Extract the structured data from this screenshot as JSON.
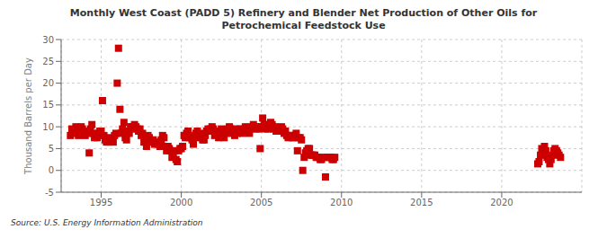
{
  "chart_data": {
    "type": "scatter",
    "title": "Monthly West Coast (PADD 5) Refinery and Blender Net Production of Other Oils for\nPetrochemical Feedstock Use",
    "ylabel": "Thousand Barrels per Day",
    "annotation": "Source: U.S. Energy Information Administration",
    "color": "#cc0000",
    "marker": "square",
    "grid": true,
    "xlim": [
      1992.5,
      2025.0
    ],
    "xticks": [
      1995,
      2000,
      2005,
      2010,
      2015,
      2020
    ],
    "ylim": [
      -5,
      30
    ],
    "yticks": [
      -5,
      0,
      5,
      10,
      15,
      20,
      25,
      30
    ],
    "x": [
      1993.08,
      1993.17,
      1993.25,
      1993.33,
      1993.42,
      1993.5,
      1993.58,
      1993.67,
      1993.75,
      1993.83,
      1993.92,
      1994.0,
      1994.08,
      1994.17,
      1994.25,
      1994.33,
      1994.42,
      1994.5,
      1994.58,
      1994.67,
      1994.75,
      1994.83,
      1994.92,
      1995.0,
      1995.08,
      1995.17,
      1995.25,
      1995.33,
      1995.42,
      1995.5,
      1995.58,
      1995.67,
      1995.75,
      1995.83,
      1995.92,
      1996.0,
      1996.08,
      1996.17,
      1996.25,
      1996.33,
      1996.42,
      1996.5,
      1996.58,
      1996.67,
      1996.75,
      1996.83,
      1996.92,
      1997.0,
      1997.08,
      1997.17,
      1997.25,
      1997.33,
      1997.42,
      1997.5,
      1997.58,
      1997.67,
      1997.75,
      1997.83,
      1997.92,
      1998.0,
      1998.08,
      1998.17,
      1998.25,
      1998.33,
      1998.42,
      1998.5,
      1998.58,
      1998.67,
      1998.75,
      1998.83,
      1998.92,
      1999.0,
      1999.08,
      1999.17,
      1999.25,
      1999.33,
      1999.42,
      1999.5,
      1999.58,
      1999.67,
      1999.75,
      1999.83,
      1999.92,
      2000.0,
      2000.08,
      2000.17,
      2000.25,
      2000.33,
      2000.42,
      2000.5,
      2000.58,
      2000.67,
      2000.75,
      2000.83,
      2000.92,
      2001.0,
      2001.08,
      2001.17,
      2001.25,
      2001.33,
      2001.42,
      2001.5,
      2001.58,
      2001.67,
      2001.75,
      2001.83,
      2001.92,
      2002.0,
      2002.08,
      2002.17,
      2002.25,
      2002.33,
      2002.42,
      2002.5,
      2002.58,
      2002.67,
      2002.75,
      2002.83,
      2002.92,
      2003.0,
      2003.08,
      2003.17,
      2003.25,
      2003.33,
      2003.42,
      2003.5,
      2003.58,
      2003.67,
      2003.75,
      2003.83,
      2003.92,
      2004.0,
      2004.08,
      2004.17,
      2004.25,
      2004.33,
      2004.42,
      2004.5,
      2004.58,
      2004.67,
      2004.75,
      2004.83,
      2004.92,
      2005.0,
      2005.08,
      2005.17,
      2005.25,
      2005.33,
      2005.42,
      2005.5,
      2005.58,
      2005.67,
      2005.75,
      2005.83,
      2005.92,
      2006.0,
      2006.08,
      2006.17,
      2006.25,
      2006.33,
      2006.42,
      2006.5,
      2006.58,
      2006.67,
      2006.75,
      2006.83,
      2006.92,
      2007.0,
      2007.08,
      2007.17,
      2007.25,
      2007.33,
      2007.42,
      2007.5,
      2007.58,
      2007.67,
      2007.75,
      2007.83,
      2007.92,
      2008.0,
      2008.08,
      2008.17,
      2008.25,
      2008.33,
      2008.42,
      2008.5,
      2008.58,
      2008.67,
      2008.75,
      2008.83,
      2009.0,
      2009.08,
      2009.17,
      2009.25,
      2009.33,
      2009.42,
      2009.5,
      2009.58,
      2022.25,
      2022.33,
      2022.42,
      2022.5,
      2022.58,
      2022.67,
      2022.75,
      2022.83,
      2022.92,
      2023.0,
      2023.08,
      2023.17,
      2023.25,
      2023.33,
      2023.42,
      2023.5,
      2023.58,
      2023.67
    ],
    "values": [
      8.0,
      9.5,
      9.0,
      8.5,
      10.0,
      9.5,
      8.0,
      9.0,
      10.0,
      9.5,
      8.5,
      8.0,
      9.0,
      8.5,
      4.0,
      9.5,
      10.5,
      8.5,
      7.5,
      8.0,
      7.5,
      8.5,
      9.0,
      9.0,
      16.0,
      8.0,
      7.0,
      6.5,
      7.0,
      6.5,
      7.5,
      7.0,
      6.5,
      8.0,
      8.5,
      20.0,
      28.0,
      14.0,
      8.5,
      9.5,
      11.0,
      7.5,
      7.0,
      9.0,
      8.5,
      10.0,
      10.0,
      9.5,
      10.5,
      10.0,
      9.5,
      9.0,
      9.5,
      8.0,
      8.5,
      6.5,
      6.5,
      5.5,
      8.0,
      7.5,
      6.5,
      6.5,
      7.0,
      6.0,
      6.5,
      6.5,
      6.0,
      5.5,
      7.0,
      8.0,
      7.5,
      5.5,
      4.5,
      5.5,
      5.0,
      4.5,
      3.0,
      4.0,
      4.5,
      2.5,
      2.0,
      4.5,
      5.0,
      5.0,
      5.5,
      8.0,
      7.5,
      8.5,
      9.0,
      7.5,
      8.0,
      7.0,
      6.0,
      7.5,
      8.5,
      9.0,
      8.0,
      8.5,
      7.5,
      7.0,
      7.0,
      8.0,
      9.0,
      9.5,
      9.0,
      9.5,
      10.0,
      9.5,
      8.0,
      9.0,
      8.5,
      7.5,
      9.0,
      9.5,
      8.0,
      7.5,
      8.5,
      9.0,
      9.5,
      10.0,
      9.5,
      8.5,
      9.0,
      8.0,
      9.5,
      8.5,
      9.0,
      9.5,
      9.0,
      8.5,
      9.5,
      10.0,
      9.5,
      9.0,
      8.5,
      9.5,
      10.0,
      10.5,
      10.0,
      9.5,
      10.0,
      9.5,
      5.0,
      10.0,
      12.0,
      10.5,
      9.5,
      10.5,
      9.5,
      10.0,
      11.0,
      10.5,
      9.5,
      10.0,
      9.0,
      9.5,
      9.0,
      9.5,
      10.0,
      9.5,
      8.5,
      9.0,
      8.0,
      7.5,
      8.0,
      8.0,
      7.5,
      7.5,
      8.0,
      8.5,
      4.5,
      7.5,
      7.5,
      7.0,
      0.0,
      3.0,
      4.0,
      4.5,
      5.0,
      5.0,
      3.5,
      3.5,
      3.5,
      3.5,
      3.0,
      3.0,
      3.0,
      2.5,
      2.5,
      3.0,
      -1.5,
      3.0,
      3.0,
      3.0,
      3.0,
      2.5,
      2.5,
      3.0,
      1.5,
      2.0,
      3.5,
      5.0,
      4.5,
      5.5,
      4.5,
      3.0,
      2.5,
      1.5,
      2.5,
      3.5,
      4.5,
      5.0,
      4.5,
      4.0,
      3.5,
      3.0
    ]
  }
}
